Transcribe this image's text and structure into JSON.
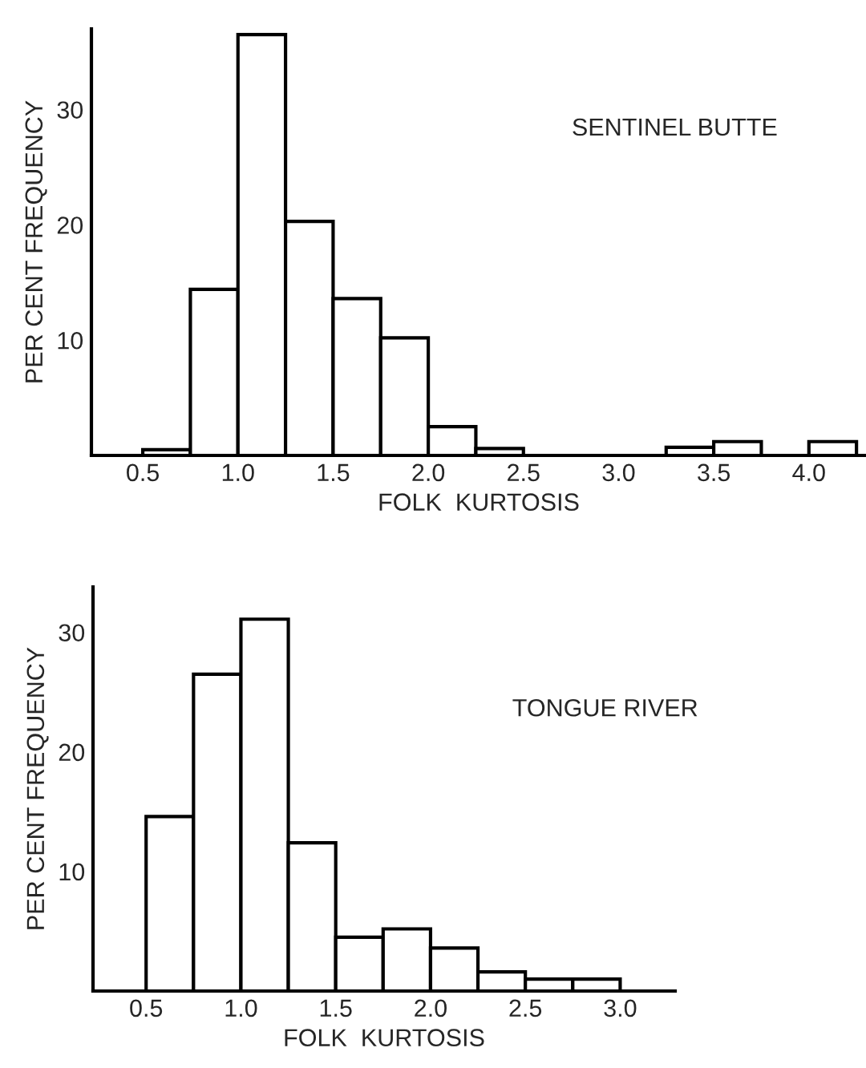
{
  "chart_data": [
    {
      "type": "histogram",
      "xlabel": "FOLK  KURTOSIS",
      "ylabel": "PER CENT FREQUENCY",
      "annotations": [
        "SENTINEL BUTTE"
      ],
      "bins": [
        0.5,
        0.75,
        1.0,
        1.25,
        1.5,
        1.75,
        2.0,
        2.25,
        2.5,
        2.75,
        3.0,
        3.25,
        3.5,
        3.75,
        4.0,
        4.25
      ],
      "values": [
        0.5,
        14.4,
        36.5,
        20.3,
        13.6,
        10.2,
        2.5,
        0.6,
        null,
        null,
        null,
        0.7,
        1.2,
        0,
        1.2
      ],
      "color": "#ffffff",
      "xlim": [
        0.23,
        4.3
      ],
      "ylim": [
        0,
        37
      ],
      "xticks": [
        {
          "value": 0.5,
          "label": "0.5"
        },
        {
          "value": 1.0,
          "label": "1.0"
        },
        {
          "value": 1.5,
          "label": "1.5"
        },
        {
          "value": 2.0,
          "label": "2.0"
        },
        {
          "value": 2.5,
          "label": "2.5"
        },
        {
          "value": 3.0,
          "label": "3.0"
        },
        {
          "value": 3.5,
          "label": "3.5"
        },
        {
          "value": 4.0,
          "label": "4.0"
        }
      ],
      "yticks": [
        10,
        20,
        30
      ],
      "grid": false
    },
    {
      "type": "histogram",
      "xlabel": "FOLK  KURTOSIS",
      "ylabel": "PER CENT FREQUENCY",
      "annotations": [
        "TONGUE RIVER"
      ],
      "bins": [
        0.5,
        0.75,
        1.0,
        1.25,
        1.5,
        1.75,
        2.0,
        2.25,
        2.5,
        2.75,
        3.0
      ],
      "values": [
        14.6,
        26.5,
        31.1,
        12.4,
        4.5,
        5.2,
        3.6,
        1.6,
        1.0,
        1.0
      ],
      "color": "#ffffff",
      "xlim": [
        0.22,
        3.29
      ],
      "ylim": [
        0,
        33.8
      ],
      "xticks": [
        {
          "value": 0.5,
          "label": "0.5"
        },
        {
          "value": 1.0,
          "label": "1.0"
        },
        {
          "value": 1.5,
          "label": "1.5"
        },
        {
          "value": 2.0,
          "label": "2.0"
        },
        {
          "value": 2.5,
          "label": "2.5"
        },
        {
          "value": 3.0,
          "label": "3.0"
        }
      ],
      "yticks": [
        10,
        20,
        30
      ],
      "grid": false
    }
  ]
}
